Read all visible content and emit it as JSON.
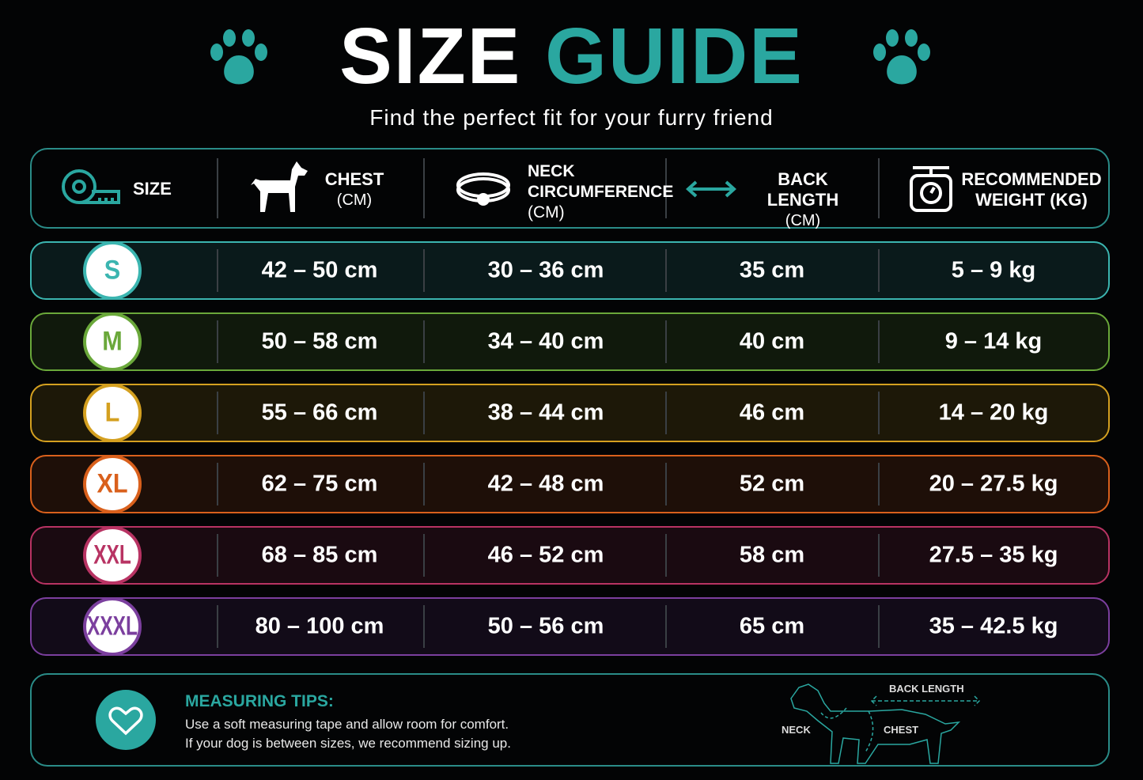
{
  "header": {
    "title_part1": "SIZE",
    "title_part2": "GUIDE",
    "subtitle": "Find the perfect fit for your furry friend"
  },
  "table": {
    "columns": [
      [
        "SIZE"
      ],
      [
        "CHEST",
        "(CM)"
      ],
      [
        "NECK",
        "CIRCUMFERENCE",
        "(CM)"
      ],
      [
        "BACK LENGTH",
        "(CM)"
      ],
      [
        "RECOMMENDED",
        "WEIGHT (KG)"
      ]
    ],
    "rows": [
      {
        "size": "S",
        "color": "#3bb5b0",
        "cells": [
          "42 – 50 cm",
          "30 – 36 cm",
          "35 cm",
          "5 – 9 kg"
        ]
      },
      {
        "size": "M",
        "color": "#6aa83a",
        "cells": [
          "50 – 58 cm",
          "34 – 40 cm",
          "40 cm",
          "9 – 14 kg"
        ]
      },
      {
        "size": "L",
        "color": "#d4a020",
        "cells": [
          "55 – 66 cm",
          "38 – 44 cm",
          "46 cm",
          "14 – 20 kg"
        ]
      },
      {
        "size": "XL",
        "color": "#d9601c",
        "cells": [
          "62 – 75 cm",
          "42 – 48 cm",
          "52 cm",
          "20 – 27.5 kg"
        ]
      },
      {
        "size": "XXL",
        "color": "#b83363",
        "cells": [
          "68 – 85 cm",
          "46 – 52 cm",
          "58 cm",
          "27.5 – 35 kg"
        ]
      },
      {
        "size": "XXXL",
        "color": "#7b3f9e",
        "cells": [
          "80 – 100 cm",
          "50 – 56 cm",
          "65 cm",
          "35 – 42.5 kg"
        ]
      }
    ]
  },
  "tips": {
    "title": "MEASURING TIPS:",
    "lines": [
      "Use a soft measuring tape and allow room for comfort.",
      "If your dog is between sizes, we recommend sizing up."
    ],
    "diagram_labels": {
      "back": "BACK LENGTH",
      "neck": "NECK",
      "chest": "CHEST"
    }
  }
}
